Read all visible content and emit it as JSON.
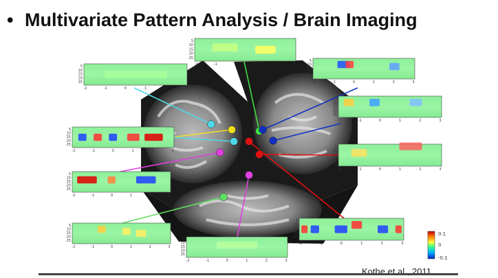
{
  "slide": {
    "bullet": "•",
    "title": "Multivariate Pattern Analysis / Brain Imaging",
    "citation": "Kothe et al., 2011"
  },
  "colorbar": {
    "max_label": "0.1",
    "mid_label": "0",
    "min_label": "-0.1",
    "colors": [
      "#c00000",
      "#ff8000",
      "#ffff40",
      "#40ff80",
      "#00c0ff",
      "#0020c0"
    ]
  },
  "panel_axis": {
    "y_ticks": [
      "5",
      "10",
      "15",
      "20",
      "25"
    ],
    "x_ticks": [
      "-2",
      "-1",
      "0",
      "1",
      "2",
      "3"
    ]
  },
  "markers": [
    {
      "name": "cyan-left",
      "color": "#4fd8e8"
    },
    {
      "name": "yellow",
      "color": "#f0e020"
    },
    {
      "name": "cyan-lower",
      "color": "#4fd8e8"
    },
    {
      "name": "magenta-upper",
      "color": "#e040e0"
    },
    {
      "name": "magenta-lower",
      "color": "#e040e0"
    },
    {
      "name": "green-upper",
      "color": "#40e040"
    },
    {
      "name": "green-lower",
      "color": "#60e060"
    },
    {
      "name": "blue-upper",
      "color": "#1030c0"
    },
    {
      "name": "blue-lower",
      "color": "#1030c0"
    },
    {
      "name": "red-center",
      "color": "#e01010"
    },
    {
      "name": "red-right",
      "color": "#e01010"
    }
  ]
}
